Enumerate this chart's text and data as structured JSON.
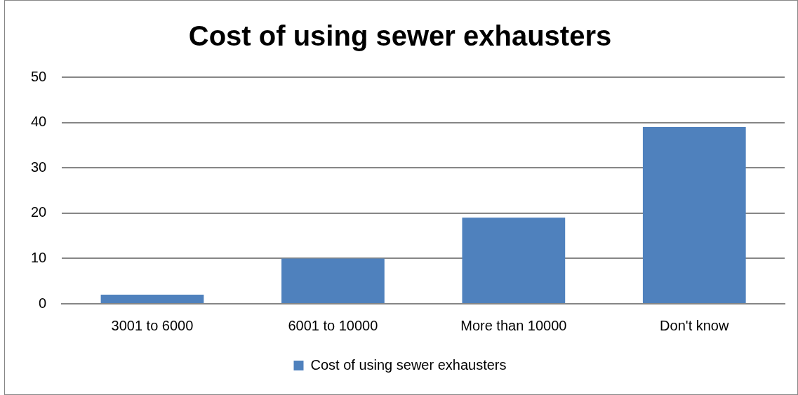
{
  "chart_data": {
    "type": "bar",
    "title": "Cost of using sewer exhausters",
    "categories": [
      "3001 to 6000",
      "6001 to 10000",
      "More than 10000",
      "Don't know"
    ],
    "series": [
      {
        "name": "Cost of using sewer exhausters",
        "color": "#4f81bd",
        "values": [
          2,
          10,
          19,
          39
        ]
      }
    ],
    "ylim": [
      0,
      50
    ],
    "yticks": [
      0,
      10,
      20,
      30,
      40,
      50
    ],
    "grid": "y",
    "legend": "bottom"
  }
}
